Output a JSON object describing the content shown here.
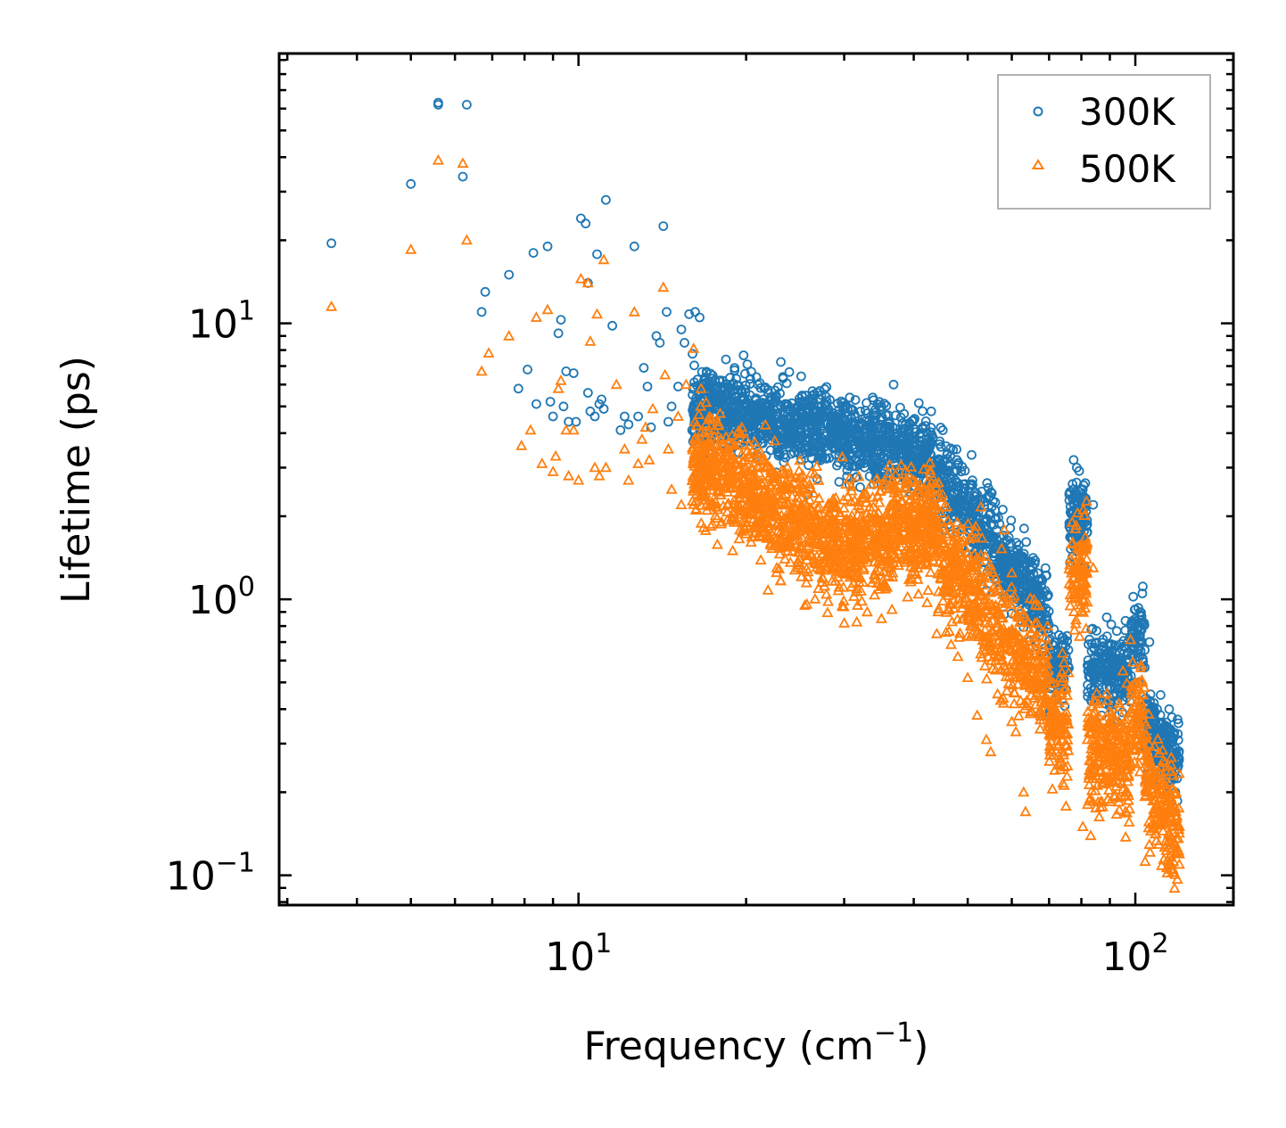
{
  "chart_data": {
    "type": "scatter",
    "title": "",
    "xlabel": "Frequency (cm",
    "xlabel_sup": "−1",
    "xlabel_close": ")",
    "ylabel": "Lifetime (ps)",
    "xscale": "log",
    "yscale": "log",
    "xlim": [
      2.9,
      150
    ],
    "ylim": [
      0.078,
      95
    ],
    "xticks": [
      {
        "value": 10,
        "base": "10",
        "exp": "1"
      },
      {
        "value": 100,
        "base": "10",
        "exp": "2"
      }
    ],
    "yticks": [
      {
        "value": 0.1,
        "base": "10",
        "exp": "−1"
      },
      {
        "value": 1,
        "base": "10",
        "exp": "0"
      },
      {
        "value": 10,
        "base": "10",
        "exp": "1"
      }
    ],
    "legend": {
      "position": "top-right"
    },
    "series": [
      {
        "name": "300K",
        "color": "#1f77b4",
        "marker": "circle",
        "points": [
          [
            3.6,
            19.5
          ],
          [
            5.0,
            32
          ],
          [
            5.6,
            63
          ],
          [
            5.6,
            62
          ],
          [
            6.2,
            34
          ],
          [
            6.3,
            62
          ],
          [
            6.7,
            11
          ],
          [
            6.8,
            13
          ],
          [
            7.5,
            15
          ],
          [
            7.8,
            5.8
          ],
          [
            8.1,
            6.8
          ],
          [
            8.3,
            18
          ],
          [
            8.4,
            5.1
          ],
          [
            8.8,
            19
          ],
          [
            8.9,
            5.2
          ],
          [
            9.0,
            4.6
          ],
          [
            9.2,
            9.2
          ],
          [
            9.3,
            10.3
          ],
          [
            9.4,
            5
          ],
          [
            9.5,
            6.7
          ],
          [
            9.6,
            4.4
          ],
          [
            9.8,
            6.6
          ],
          [
            9.9,
            4.4
          ],
          [
            10.1,
            24
          ],
          [
            10.3,
            23
          ],
          [
            10.4,
            14
          ],
          [
            10.4,
            5.6
          ],
          [
            10.5,
            4.8
          ],
          [
            10.7,
            4.6
          ],
          [
            10.8,
            17.8
          ],
          [
            10.9,
            5.1
          ],
          [
            11.0,
            5.3
          ],
          [
            11.1,
            4.9
          ],
          [
            11.2,
            28
          ],
          [
            11.5,
            9.8
          ],
          [
            11.9,
            4.1
          ],
          [
            12.1,
            4.6
          ],
          [
            12.3,
            4.3
          ],
          [
            12.6,
            19
          ],
          [
            12.8,
            4.6
          ],
          [
            13.1,
            6.9
          ],
          [
            13.3,
            5.9
          ],
          [
            13.5,
            4.2
          ],
          [
            13.8,
            9
          ],
          [
            14.0,
            8.5
          ],
          [
            14.2,
            22.5
          ],
          [
            14.4,
            11
          ],
          [
            14.5,
            4.4
          ],
          [
            14.7,
            5
          ],
          [
            15.1,
            5.9
          ],
          [
            15.3,
            9.5
          ],
          [
            15.5,
            8.5
          ],
          [
            15.8,
            10.8
          ],
          [
            16.0,
            4.1
          ],
          [
            16.2,
            11
          ],
          [
            16.5,
            10.5
          ],
          [
            16.8,
            6.2
          ],
          [
            17.2,
            5.6
          ],
          [
            17.6,
            4.9
          ],
          [
            18.1,
            5.3
          ],
          [
            18.4,
            7.4
          ],
          [
            19.2,
            6.3
          ],
          [
            19.9,
            5.1
          ],
          [
            20.1,
            7.1
          ],
          [
            21.0,
            6
          ],
          [
            22.2,
            5.4
          ],
          [
            23.5,
            5.1
          ],
          [
            24.7,
            4.9
          ],
          [
            26.5,
            4.4
          ],
          [
            27.3,
            5.5
          ],
          [
            28.5,
            4.4
          ],
          [
            30.0,
            4.5
          ],
          [
            33.0,
            3.9
          ],
          [
            35.0,
            5
          ],
          [
            36.8,
            6
          ],
          [
            41.5,
            4.2
          ],
          [
            43.0,
            4.8
          ],
          [
            47.8,
            3.2
          ],
          [
            51.0,
            2.6
          ],
          [
            56.0,
            2.1
          ],
          [
            62.0,
            1.35
          ],
          [
            77.5,
            3.2
          ],
          [
            78.5,
            3
          ],
          [
            80.5,
            2.5
          ],
          [
            84.0,
            2.2
          ],
          [
            100.0,
            0.92
          ],
          [
            102.0,
            0.9
          ],
          [
            106.0,
            0.7
          ],
          [
            111.0,
            0.45
          ],
          [
            115.0,
            0.4
          ],
          [
            116.0,
            0.22
          ],
          [
            118.0,
            0.2
          ]
        ]
      },
      {
        "name": "500K",
        "color": "#ff7f0e",
        "marker": "triangle",
        "points": [
          [
            3.6,
            11.5
          ],
          [
            5.0,
            18.5
          ],
          [
            5.6,
            39
          ],
          [
            6.2,
            38
          ],
          [
            6.3,
            20
          ],
          [
            6.7,
            6.7
          ],
          [
            6.9,
            7.8
          ],
          [
            7.5,
            9
          ],
          [
            7.9,
            3.6
          ],
          [
            8.2,
            4.1
          ],
          [
            8.4,
            10.5
          ],
          [
            8.6,
            3.1
          ],
          [
            8.8,
            11.2
          ],
          [
            9.0,
            2.9
          ],
          [
            9.1,
            3.3
          ],
          [
            9.2,
            5.8
          ],
          [
            9.3,
            6.2
          ],
          [
            9.5,
            4.1
          ],
          [
            9.6,
            2.8
          ],
          [
            9.8,
            4.1
          ],
          [
            10.0,
            2.7
          ],
          [
            10.1,
            14.5
          ],
          [
            10.4,
            14
          ],
          [
            10.5,
            8.6
          ],
          [
            10.7,
            3
          ],
          [
            10.8,
            10.8
          ],
          [
            10.9,
            2.8
          ],
          [
            11.1,
            17
          ],
          [
            11.2,
            3
          ],
          [
            11.7,
            6
          ],
          [
            12.1,
            3.5
          ],
          [
            12.3,
            2.7
          ],
          [
            12.6,
            11
          ],
          [
            12.8,
            3.1
          ],
          [
            13.0,
            3.8
          ],
          [
            13.2,
            4.2
          ],
          [
            13.4,
            3.2
          ],
          [
            13.6,
            4.9
          ],
          [
            14.2,
            13.5
          ],
          [
            14.3,
            6.5
          ],
          [
            14.5,
            3.5
          ],
          [
            14.7,
            2.5
          ],
          [
            15.1,
            4.6
          ],
          [
            15.3,
            2.2
          ],
          [
            15.6,
            6
          ],
          [
            16.1,
            8.1
          ],
          [
            16.3,
            2.4
          ],
          [
            16.6,
            5.8
          ],
          [
            17.0,
            2.7
          ],
          [
            18.0,
            3.3
          ],
          [
            18.5,
            2.2
          ],
          [
            19.0,
            1.95
          ],
          [
            19.9,
            3.2
          ],
          [
            21.0,
            2.3
          ],
          [
            22.0,
            1.7
          ],
          [
            23.1,
            1.55
          ],
          [
            24.8,
            1.3
          ],
          [
            25.5,
            0.95
          ],
          [
            28.0,
            1.3
          ],
          [
            30.0,
            0.82
          ],
          [
            33.0,
            0.9
          ],
          [
            35.0,
            0.85
          ],
          [
            37.0,
            2.5
          ],
          [
            44.0,
            0.75
          ],
          [
            48.0,
            0.62
          ],
          [
            50.0,
            0.52
          ],
          [
            52.0,
            0.38
          ],
          [
            54.0,
            0.31
          ],
          [
            55.0,
            0.28
          ],
          [
            58.0,
            0.42
          ],
          [
            60.0,
            0.36
          ],
          [
            63.0,
            0.2
          ],
          [
            63.5,
            0.17
          ],
          [
            77.0,
            1.9
          ],
          [
            78.0,
            1.8
          ],
          [
            82.0,
            1.6
          ],
          [
            84.0,
            1.3
          ],
          [
            86.0,
            0.35
          ],
          [
            80.5,
            0.15
          ],
          [
            95.0,
            0.55
          ],
          [
            100.0,
            0.5
          ],
          [
            103.0,
            0.4
          ],
          [
            110.0,
            0.2
          ],
          [
            115.0,
            0.11
          ],
          [
            116.0,
            0.105
          ],
          [
            118.0,
            0.12
          ]
        ]
      }
    ]
  }
}
